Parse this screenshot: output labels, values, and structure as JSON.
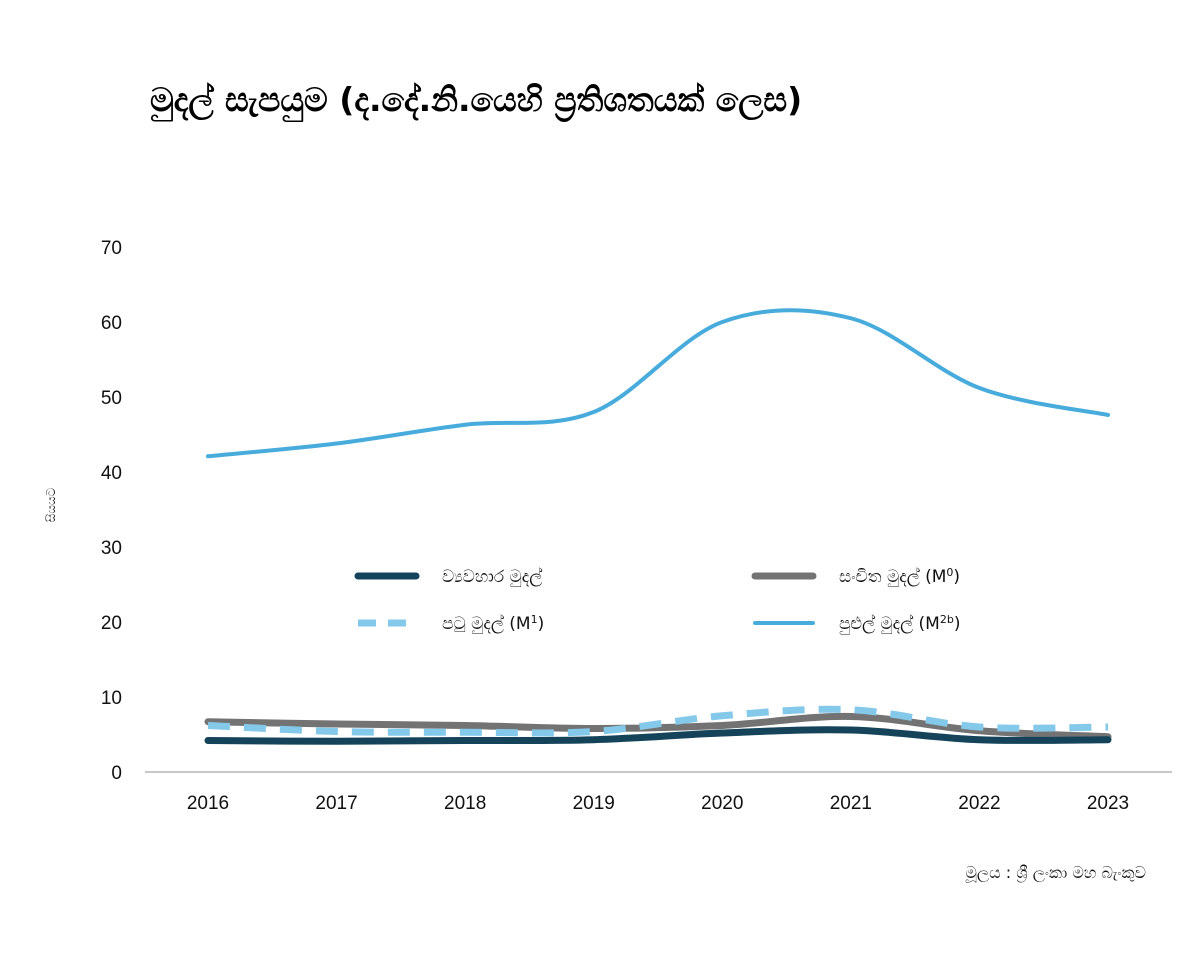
{
  "chart_data": {
    "type": "line",
    "title": "මුදල් සැපයුම (ද.දේ.නි.යෙහි ප්‍රතිශතයක් ලෙස)",
    "xlabel": "",
    "ylabel": "සියයට",
    "x": [
      "2016",
      "2017",
      "2018",
      "2019",
      "2020",
      "2021",
      "2022",
      "2023"
    ],
    "ylim": [
      0,
      70
    ],
    "yticks": [
      0,
      10,
      20,
      30,
      40,
      50,
      60,
      70
    ],
    "grid": false,
    "legend_position": "center",
    "series": [
      {
        "name_parts": [
          "ව්‍යවහාර මුදල්"
        ],
        "color": "#14435a",
        "style": "solid-thick",
        "values": [
          4.2,
          4.1,
          4.2,
          4.3,
          5.2,
          5.6,
          4.3,
          4.3
        ]
      },
      {
        "name_parts": [
          "සංචිත මුදල්  (M",
          "0",
          ")"
        ],
        "color": "#737373",
        "style": "solid-thick",
        "values": [
          6.7,
          6.4,
          6.2,
          5.8,
          6.2,
          7.4,
          5.5,
          4.7
        ]
      },
      {
        "name_parts": [
          "පටු මුදල්  (M",
          "1",
          ")"
        ],
        "color": "#85c9ea",
        "style": "dashed",
        "values": [
          6.2,
          5.4,
          5.3,
          5.4,
          7.5,
          8.3,
          6.0,
          6.0
        ]
      },
      {
        "name_parts": [
          "පුළුල් මුදල්  (M",
          "2b",
          ")"
        ],
        "color": "#47acdc",
        "style": "solid",
        "values": [
          42.1,
          43.8,
          46.3,
          48.0,
          60.0,
          60.5,
          51.2,
          47.6
        ]
      }
    ],
    "source": "මූලය : ශ්‍රී ලංකා මහ බැංකුව"
  }
}
